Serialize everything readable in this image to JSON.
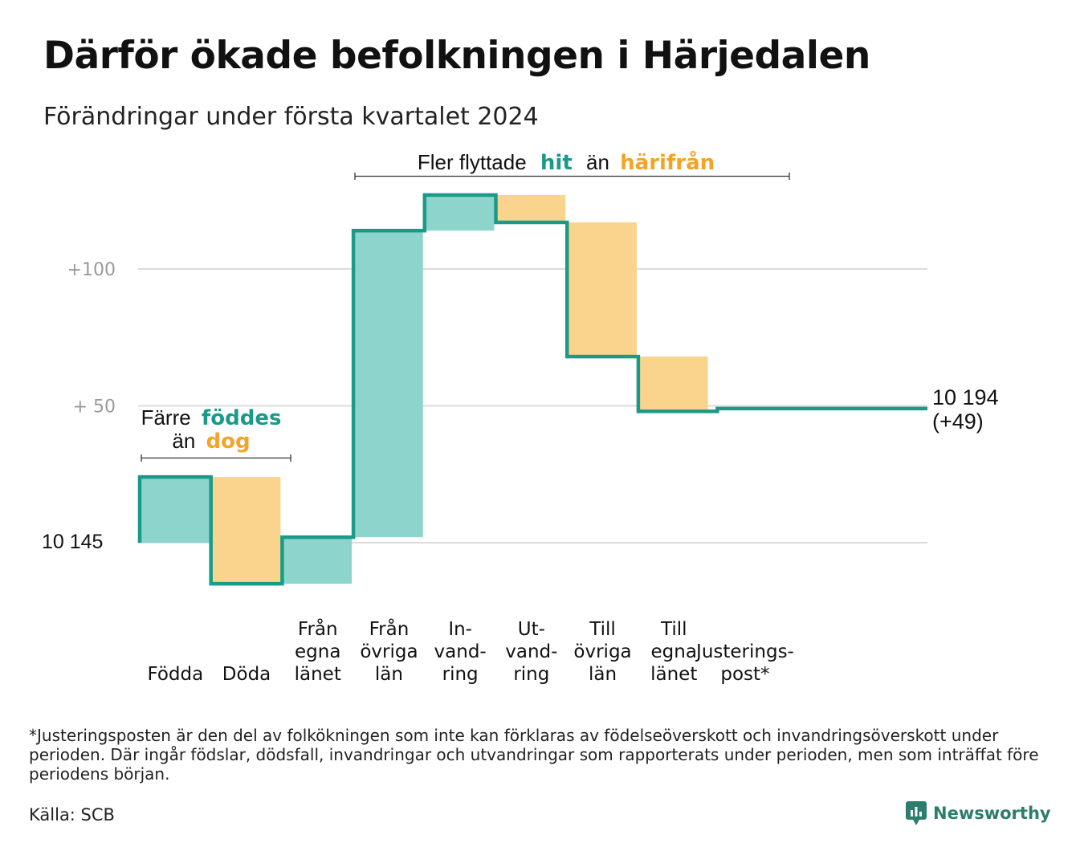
{
  "title": "Därför ökade befolkningen i Härjedalen",
  "subtitle": "Förändringar under första kvartalet 2024",
  "chart_data": {
    "type": "waterfall",
    "start_value": 10145,
    "start_label": "10  145",
    "end_value": 10194,
    "end_label_line1": "10 194",
    "end_label_line2": "(+49)",
    "y_ticks": [
      {
        "value": 50,
        "label": "+  50"
      },
      {
        "value": 100,
        "label": "+100"
      }
    ],
    "ylim": [
      -30,
      140
    ],
    "grid": true,
    "steps": [
      {
        "name": "Födda",
        "lines": [
          "Födda"
        ],
        "change": 24,
        "kind": "in"
      },
      {
        "name": "Döda",
        "lines": [
          "Döda"
        ],
        "change": -39,
        "kind": "out"
      },
      {
        "name": "Från egna länet",
        "lines": [
          "Från",
          "egna",
          "länet"
        ],
        "change": 17,
        "kind": "in"
      },
      {
        "name": "Från övriga län",
        "lines": [
          "Från",
          "övriga",
          "län"
        ],
        "change": 112,
        "kind": "in"
      },
      {
        "name": "Invandring",
        "lines": [
          "In-",
          "vand-",
          "ring"
        ],
        "change": 13,
        "kind": "in"
      },
      {
        "name": "Utvandring",
        "lines": [
          "Ut-",
          "vand-",
          "ring"
        ],
        "change": -10,
        "kind": "out"
      },
      {
        "name": "Till övriga län",
        "lines": [
          "Till",
          "övriga",
          "län"
        ],
        "change": -49,
        "kind": "out"
      },
      {
        "name": "Till egna länet",
        "lines": [
          "Till",
          "egna",
          "länet"
        ],
        "change": -20,
        "kind": "out"
      },
      {
        "name": "Justeringspost*",
        "lines": [
          "Justerings-",
          "post*"
        ],
        "change": 1,
        "kind": "adjust"
      }
    ],
    "annotations": [
      {
        "pre": "Färre",
        "teal": "föddes",
        "mid": "än",
        "orange": "dog"
      },
      {
        "pre": "Fler flyttade",
        "teal": "hit",
        "mid": "än",
        "orange": "härifrån"
      }
    ],
    "colors": {
      "in": "#8dd5cc",
      "out": "#fad48d",
      "line": "#1a9a88",
      "grid": "#dcdcdc"
    }
  },
  "footnote": "*Justeringsposten är den del av folkökningen som inte kan förklaras av födelseöverskott och invandringsöverskott under perioden. Där ingår födslar, dödsfall, invandringar och utvandringar som rapporterats under perioden, men som inträffat före periodens början.",
  "source": "Källa: SCB",
  "brand": {
    "name": "Newsworthy",
    "icon": "bar-chart-bubble-icon"
  }
}
